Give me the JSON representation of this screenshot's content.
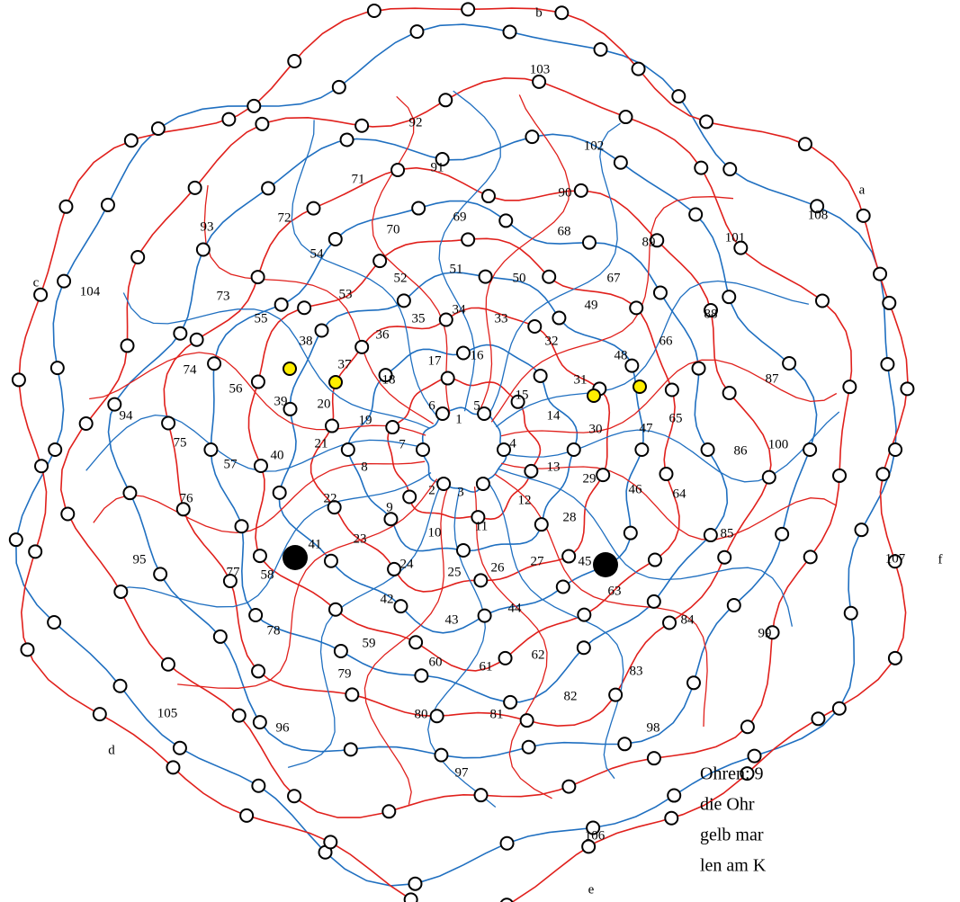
{
  "corner_labels": [
    "a",
    "b",
    "c",
    "d",
    "e",
    "f"
  ],
  "node_labels": [
    "1",
    "2",
    "3",
    "4",
    "5",
    "6",
    "7",
    "8",
    "9",
    "10",
    "11",
    "12",
    "13",
    "14",
    "15",
    "16",
    "17",
    "18",
    "19",
    "20",
    "21",
    "22",
    "23",
    "24",
    "25",
    "26",
    "27",
    "28",
    "29",
    "30",
    "31",
    "32",
    "33",
    "34",
    "35",
    "36",
    "37",
    "38",
    "39",
    "40",
    "41",
    "42",
    "43",
    "44",
    "45",
    "46",
    "47",
    "48",
    "49",
    "50",
    "51",
    "52",
    "53",
    "54",
    "55",
    "56",
    "57",
    "58",
    "59",
    "60",
    "61",
    "62",
    "63",
    "64",
    "65",
    "66",
    "67",
    "68",
    "69",
    "70",
    "71",
    "72",
    "73",
    "74",
    "75",
    "76",
    "77",
    "78",
    "79",
    "80",
    "81",
    "82",
    "83",
    "84",
    "85",
    "86",
    "87",
    "88",
    "89",
    "90",
    "91",
    "92",
    "93",
    "94",
    "95",
    "96",
    "97",
    "98",
    "99",
    "100",
    "101",
    "102",
    "103",
    "104",
    "105",
    "106",
    "107",
    "108"
  ],
  "note": [
    "Ohren: 9",
    "die  Ohr",
    "gelb mar",
    "len am K"
  ]
}
